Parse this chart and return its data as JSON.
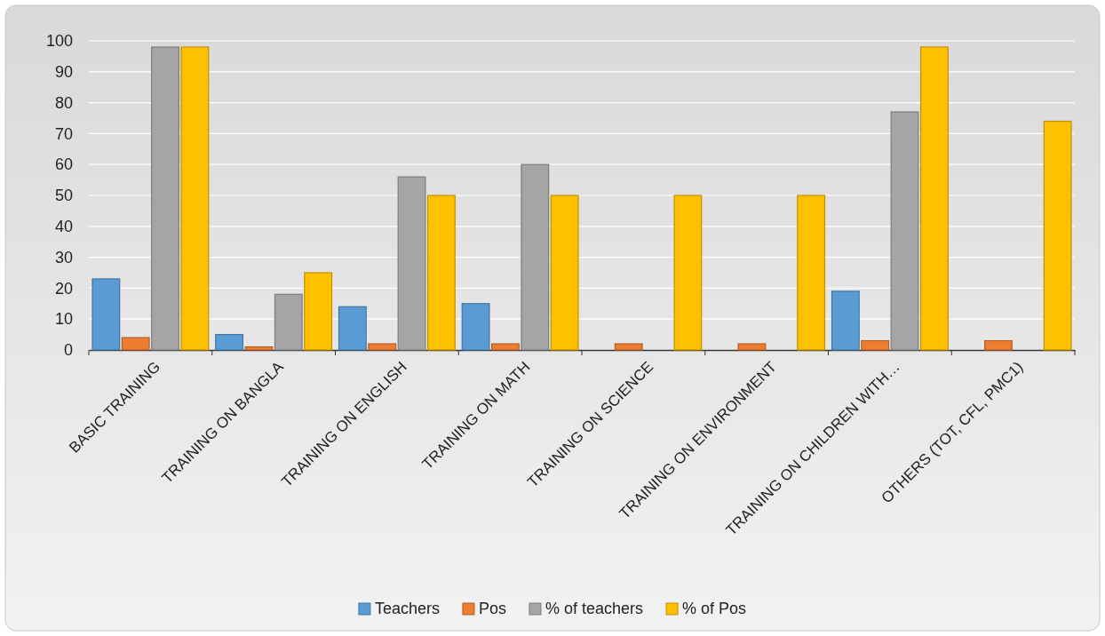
{
  "chart_data": {
    "type": "bar",
    "categories": [
      "BASIC TRAINING",
      "TRAINING ON BANGLA",
      "TRAINING ON ENGLISH",
      "TRAINING ON MATH",
      "TRAINING ON SCIENCE",
      "TRAINING ON ENVIRONMENT",
      "TRAINING ON CHILDREN WITH…",
      "OTHERS (TOT, CFL, PMC1)"
    ],
    "series": [
      {
        "name": "Teachers",
        "color": "#5b9bd5",
        "values": [
          23,
          5,
          14,
          15,
          0,
          0,
          19,
          0
        ]
      },
      {
        "name": "Pos",
        "color": "#ed7d31",
        "values": [
          4,
          1,
          2,
          2,
          2,
          2,
          3,
          3
        ]
      },
      {
        "name": "% of teachers",
        "color": "#a5a5a5",
        "values": [
          98,
          18,
          56,
          60,
          0,
          0,
          77,
          0
        ]
      },
      {
        "name": "% of Pos",
        "color": "#ffc000",
        "values": [
          98,
          25,
          50,
          50,
          50,
          50,
          98,
          74
        ]
      }
    ],
    "ylim": [
      0,
      100
    ],
    "yticks": [
      0,
      10,
      20,
      30,
      40,
      50,
      60,
      70,
      80,
      90,
      100
    ],
    "grid": "y",
    "legend": "bottom"
  }
}
